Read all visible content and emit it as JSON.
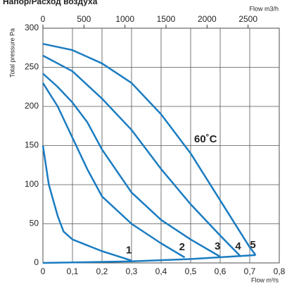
{
  "chart_data": {
    "type": "line",
    "title": "Напор/Расход воздуха",
    "xlabel": "Flow m³/s",
    "x2label": "Flow m3/h",
    "ylabel": "Total pressure Pa",
    "xlim": [
      0,
      0.8
    ],
    "xticks": [
      0,
      {
        "value": 0.1,
        "label": "0,1"
      },
      {
        "value": 0.2,
        "label": "0,2"
      },
      {
        "value": 0.3,
        "label": "0,3"
      },
      {
        "value": 0.4,
        "label": "0,4"
      },
      {
        "value": 0.5,
        "label": "0,5"
      },
      {
        "value": 0.6,
        "label": "0,6"
      },
      {
        "value": 0.7,
        "label": "0,7"
      },
      {
        "value": 0.8,
        "label": "0,8"
      }
    ],
    "x2lim": [
      0,
      2880
    ],
    "x2ticks": [
      0,
      500,
      1000,
      1500,
      2000,
      2500
    ],
    "ylim": [
      0,
      300
    ],
    "yticks": [
      0,
      50,
      100,
      150,
      200,
      250,
      300
    ],
    "grid": true,
    "color": "#1a7cc1",
    "series": [
      {
        "name": "1",
        "x": [
          0,
          0.02,
          0.05,
          0.07,
          0.1,
          0.2,
          0.3
        ],
        "values": [
          150,
          100,
          60,
          40,
          30,
          15,
          3
        ]
      },
      {
        "name": "2",
        "x": [
          0,
          0.05,
          0.1,
          0.15,
          0.2,
          0.3,
          0.4,
          0.48
        ],
        "values": [
          230,
          200,
          160,
          120,
          85,
          50,
          25,
          7
        ]
      },
      {
        "name": "3",
        "x": [
          0,
          0.05,
          0.1,
          0.15,
          0.2,
          0.3,
          0.4,
          0.5,
          0.6
        ],
        "values": [
          242,
          225,
          205,
          180,
          145,
          90,
          55,
          30,
          8
        ]
      },
      {
        "name": "4",
        "x": [
          0,
          0.1,
          0.2,
          0.3,
          0.4,
          0.5,
          0.6,
          0.67
        ],
        "values": [
          265,
          245,
          210,
          170,
          120,
          75,
          35,
          8
        ]
      },
      {
        "name": "5",
        "x": [
          0,
          0.1,
          0.2,
          0.3,
          0.4,
          0.5,
          0.6,
          0.7,
          0.72
        ],
        "values": [
          280,
          272,
          255,
          230,
          190,
          140,
          80,
          20,
          10
        ]
      }
    ],
    "system_curve": {
      "x": [
        0,
        0.3,
        0.5,
        0.72
      ],
      "values": [
        0,
        2,
        5,
        10
      ]
    },
    "annotation": "60˚C"
  }
}
